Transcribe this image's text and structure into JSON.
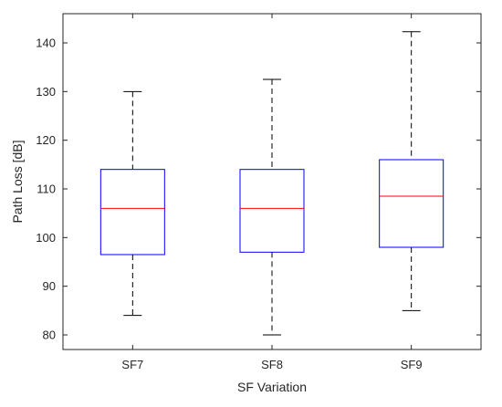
{
  "chart_data": {
    "type": "box",
    "xlabel": "SF Variation",
    "ylabel": "Path Loss [dB]",
    "ylim": [
      77,
      146
    ],
    "yticks": [
      80,
      90,
      100,
      110,
      120,
      130,
      140
    ],
    "categories": [
      "SF7",
      "SF8",
      "SF9"
    ],
    "boxes": [
      {
        "category": "SF7",
        "min": 84,
        "q1": 96.5,
        "median": 106,
        "q3": 114,
        "max": 130
      },
      {
        "category": "SF8",
        "min": 80,
        "q1": 97,
        "median": 106,
        "q3": 114,
        "max": 132.5
      },
      {
        "category": "SF9",
        "min": 85,
        "q1": 98,
        "median": 108.5,
        "q3": 116,
        "max": 142.3
      }
    ],
    "grid": false,
    "colors": {
      "box": "#0000ff",
      "median": "#ff0000",
      "whisker": "#000000",
      "axes": "#262626"
    }
  }
}
